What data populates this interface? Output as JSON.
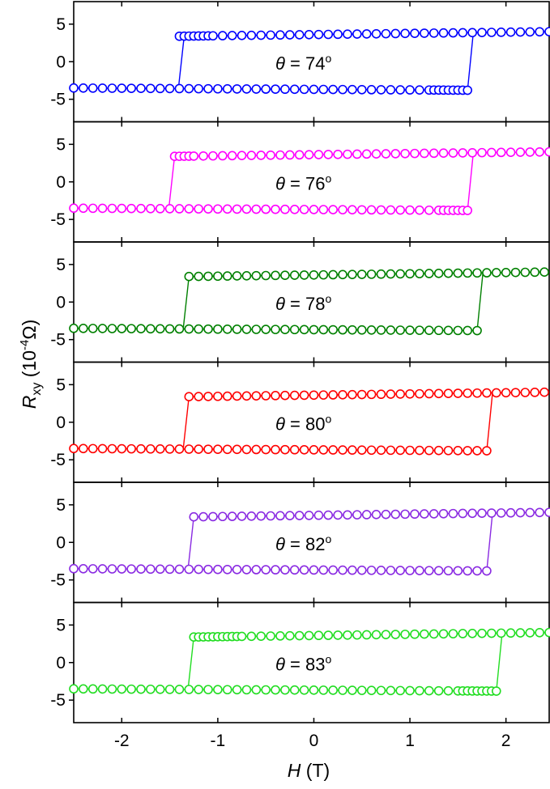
{
  "chart_data": {
    "type": "scatter",
    "layout": "stacked-panels",
    "x_axis": {
      "label_symbol": "H",
      "label_unit": " (T)",
      "xlim": [
        -2.5,
        2.45
      ],
      "ticks": [
        -2,
        -1,
        0,
        1,
        2
      ],
      "tick_labels": [
        "-2",
        "-1",
        "0",
        "1",
        "2"
      ]
    },
    "y_axis": {
      "label_symbol": "R",
      "label_subscript": "xy",
      "label_unit_prefix": " (10",
      "label_unit_exponent": "-4",
      "label_unit_suffix": "Ω)",
      "ylim": [
        -8,
        8
      ],
      "ticks": [
        -5,
        0,
        5
      ],
      "tick_labels": [
        "-5",
        "0",
        "5"
      ]
    },
    "marker": "open-circle",
    "panels": [
      {
        "theta_symbol": "θ",
        "theta_text": " = 74",
        "degree": "o",
        "color": "#0000ff",
        "switch_neg": -1.35,
        "switch_pos": 1.6,
        "upper_start": 3.4,
        "upper_end": 4.0,
        "lower_start": -3.5,
        "lower_end": -3.8,
        "dense_lower": [
          1.2,
          1.6
        ],
        "dense_upper": [
          -1.4,
          -1.05
        ]
      },
      {
        "theta_symbol": "θ",
        "theta_text": " = 76",
        "degree": "o",
        "color": "#ff00ff",
        "switch_neg": -1.45,
        "switch_pos": 1.6,
        "upper_start": 3.4,
        "upper_end": 4.0,
        "lower_start": -3.5,
        "lower_end": -3.8,
        "dense_lower": [
          1.3,
          1.6
        ],
        "dense_upper": [
          -1.45,
          -1.25
        ]
      },
      {
        "theta_symbol": "θ",
        "theta_text": " = 78",
        "degree": "o",
        "color": "#008000",
        "switch_neg": -1.3,
        "switch_pos": 1.7,
        "upper_start": 3.4,
        "upper_end": 4.0,
        "lower_start": -3.5,
        "lower_end": -3.8,
        "dense_lower": [],
        "dense_upper": []
      },
      {
        "theta_symbol": "θ",
        "theta_text": " = 80",
        "degree": "o",
        "color": "#ff0000",
        "switch_neg": -1.3,
        "switch_pos": 1.8,
        "upper_start": 3.4,
        "upper_end": 4.0,
        "lower_start": -3.5,
        "lower_end": -3.8,
        "dense_lower": [],
        "dense_upper": []
      },
      {
        "theta_symbol": "θ",
        "theta_text": " = 82",
        "degree": "o",
        "color": "#8a2be2",
        "switch_neg": -1.25,
        "switch_pos": 1.8,
        "upper_start": 3.4,
        "upper_end": 4.0,
        "lower_start": -3.5,
        "lower_end": -3.8,
        "dense_lower": [],
        "dense_upper": []
      },
      {
        "theta_symbol": "θ",
        "theta_text": " = 83",
        "degree": "o",
        "color": "#22dd22",
        "switch_neg": -1.25,
        "switch_pos": 1.9,
        "upper_start": 3.4,
        "upper_end": 4.0,
        "lower_start": -3.5,
        "lower_end": -3.8,
        "dense_lower": [
          1.5,
          1.9
        ],
        "dense_upper": [
          -1.25,
          -0.8
        ]
      }
    ]
  }
}
